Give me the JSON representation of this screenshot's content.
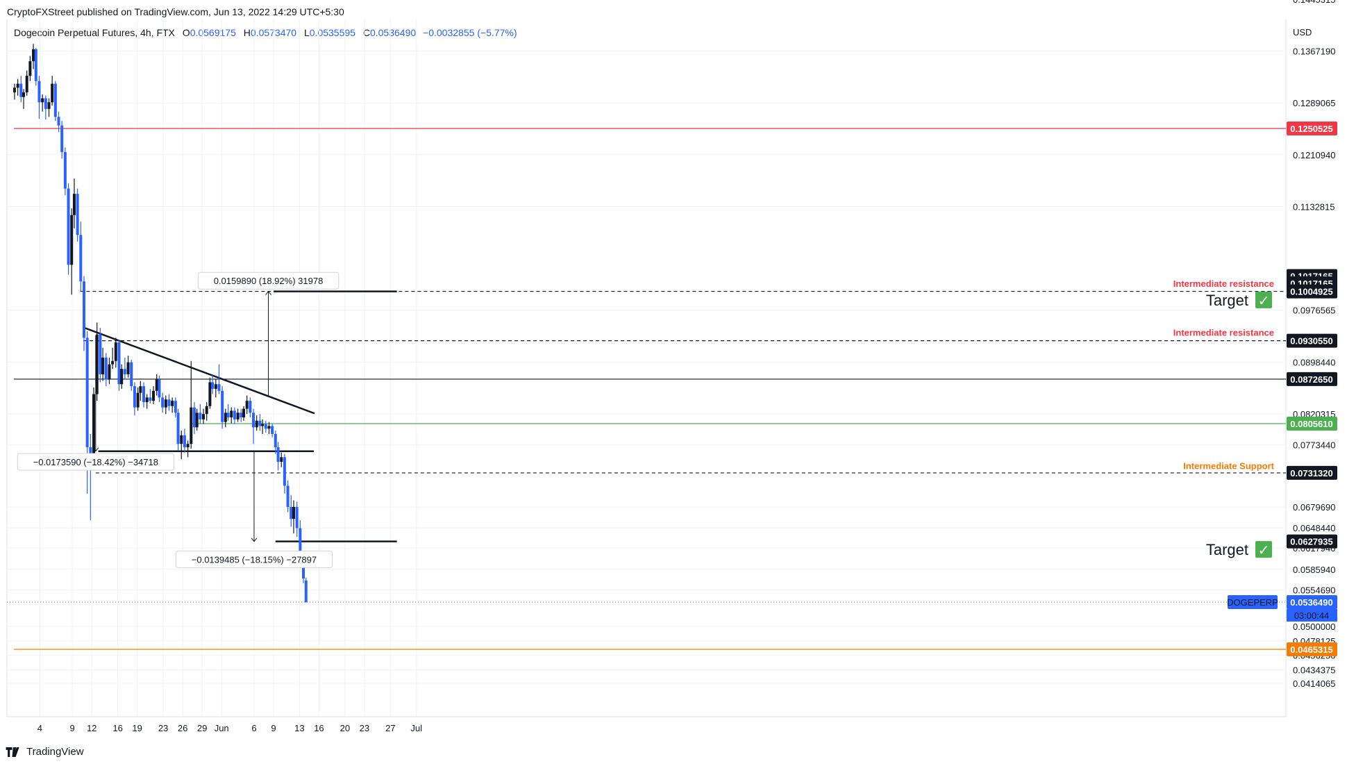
{
  "header": {
    "published": "CryptoFXStreet published on TradingView.com, Jun 13, 2022 14:29 UTC+5:30"
  },
  "legend": {
    "instrument": "Dogecoin Perpetual Futures, 4h, FTX",
    "open_label": "O",
    "open": "0.0569175",
    "high_label": "H",
    "high": "0.0573470",
    "low_label": "L",
    "low": "0.0535595",
    "close_label": "C",
    "close": "0.0536490",
    "change": "−0.0032855 (−5.77%)"
  },
  "footer": {
    "brand": "TradingView"
  },
  "chart_data": {
    "type": "candlestick",
    "currency": "USD",
    "colors": {
      "up": "#131722",
      "down": "#2962ff",
      "grid": "#f0f3fa",
      "resistance": "#f23645",
      "support_color": "#f57c00",
      "green_line": "#4caf50"
    },
    "y_ticks": [
      "0.1445315",
      "0.1367190",
      "0.1289065",
      "0.1210940",
      "0.1132815",
      "0.0976565",
      "0.0898440",
      "0.0820315",
      "0.0773440",
      "0.0679690",
      "0.0648440",
      "0.0617940",
      "0.0585940",
      "0.0554690",
      "0.0500000",
      "0.0478125",
      "0.0456250",
      "0.0434375",
      "0.0414065"
    ],
    "x_ticks": [
      {
        "label": "4",
        "day": 4
      },
      {
        "label": "9",
        "day": 9
      },
      {
        "label": "12",
        "day": 12
      },
      {
        "label": "16",
        "day": 16
      },
      {
        "label": "19",
        "day": 19
      },
      {
        "label": "23",
        "day": 23
      },
      {
        "label": "26",
        "day": 26
      },
      {
        "label": "29",
        "day": 29
      },
      {
        "label": "Jun",
        "day": 32
      },
      {
        "label": "6",
        "day": 37
      },
      {
        "label": "9",
        "day": 40
      },
      {
        "label": "13",
        "day": 44
      },
      {
        "label": "16",
        "day": 47
      },
      {
        "label": "20",
        "day": 51
      },
      {
        "label": "23",
        "day": 54
      },
      {
        "label": "27",
        "day": 58
      },
      {
        "label": "Jul",
        "day": 62
      }
    ],
    "price_tags": [
      {
        "value": "0.1250525",
        "price": 0.1250525,
        "bg": "#f23645",
        "fg": "#ffffff"
      },
      {
        "value": "0.1017165",
        "price": 0.1028,
        "bg": "#131722",
        "fg": "#ffffff"
      },
      {
        "value": "0.1017165",
        "price": 0.1017165,
        "bg": "#131722",
        "fg": "#ffffff"
      },
      {
        "value": "0.1004925",
        "price": 0.1004925,
        "bg": "#131722",
        "fg": "#ffffff"
      },
      {
        "value": "0.0930550",
        "price": 0.093055,
        "bg": "#131722",
        "fg": "#ffffff"
      },
      {
        "value": "0.0872650",
        "price": 0.087265,
        "bg": "#131722",
        "fg": "#ffffff"
      },
      {
        "value": "0.0805610",
        "price": 0.080561,
        "bg": "#4caf50",
        "fg": "#ffffff"
      },
      {
        "value": "0.0731320",
        "price": 0.073132,
        "bg": "#131722",
        "fg": "#ffffff"
      },
      {
        "value": "0.0627935",
        "price": 0.0627935,
        "bg": "#131722",
        "fg": "#ffffff"
      },
      {
        "value": "0.0536490",
        "price": 0.053649,
        "bg": "#2962ff",
        "fg": "#ffffff"
      },
      {
        "value": "0.0465315",
        "price": 0.0465315,
        "bg": "#f57c00",
        "fg": "#ffffff"
      }
    ],
    "countdown": "03:00:44",
    "symbol_tag": "DOGEPERP",
    "horizontal_levels": [
      {
        "price": 0.1250525,
        "color": "#f23645",
        "style": "solid",
        "from_day": 0
      },
      {
        "price": 0.1004925,
        "color": "#131722",
        "style": "dashed",
        "from_day": 10.2
      },
      {
        "price": 0.093055,
        "color": "#131722",
        "style": "dashed",
        "from_day": 10.7
      },
      {
        "price": 0.087265,
        "color": "#131722",
        "style": "solid",
        "from_day": 0
      },
      {
        "price": 0.080561,
        "color": "#4caf50",
        "style": "solid",
        "from_day": 27.4
      },
      {
        "price": 0.073132,
        "color": "#131722",
        "style": "dashed",
        "from_day": 12.6
      },
      {
        "price": 0.0465315,
        "color": "#f57c00",
        "style": "solid",
        "from_day": 0
      }
    ],
    "annotations": [
      {
        "text": "Intermediate resistance",
        "price": 0.1017165,
        "color": "#f23645"
      },
      {
        "text": "Intermediate resistance",
        "price": 0.0943,
        "color": "#f23645"
      },
      {
        "text": "Intermediate Support",
        "price": 0.0742,
        "color": "#f57c00"
      }
    ],
    "targets": [
      {
        "label": "Target",
        "check": "✓",
        "price": 0.0992
      },
      {
        "label": "Target",
        "check": "✓",
        "price": 0.0616
      }
    ],
    "trendlines": [
      {
        "from": [
          10.6,
          0.0951
        ],
        "to": [
          46.3,
          0.0821
        ]
      },
      {
        "from": [
          13.0,
          0.0764
        ],
        "to": [
          46.2,
          0.0764
        ]
      },
      {
        "from": [
          40.0,
          0.1004925
        ],
        "to": [
          59.0,
          0.1004925
        ]
      },
      {
        "from": [
          40.3,
          0.0627935
        ],
        "to": [
          59.0,
          0.0627935
        ]
      }
    ],
    "measurements": [
      {
        "text": "0.0159890 (18.92%) 31978",
        "from_price": 0.0847,
        "to_price": 0.1004925,
        "day": 39.2,
        "box_price": 0.1021
      },
      {
        "text": "−0.0173590 (−18.42%) −34718",
        "from_price": 0.0938,
        "to_price": 0.0764,
        "day": 12.6,
        "box_price": 0.0748
      },
      {
        "text": "−0.0139485 (−18.15%) −27897",
        "from_price": 0.0764,
        "to_price": 0.0627935,
        "day": 37.0,
        "box_price": 0.0601
      }
    ],
    "candles": [
      {
        "t": 0.1,
        "o": 0.1305,
        "h": 0.1318,
        "l": 0.1294,
        "c": 0.1312
      },
      {
        "t": 0.6,
        "o": 0.1312,
        "h": 0.1325,
        "l": 0.13,
        "c": 0.1318
      },
      {
        "t": 1.1,
        "o": 0.1318,
        "h": 0.133,
        "l": 0.129,
        "c": 0.1298
      },
      {
        "t": 1.5,
        "o": 0.1298,
        "h": 0.131,
        "l": 0.128,
        "c": 0.1305
      },
      {
        "t": 2.0,
        "o": 0.1305,
        "h": 0.1338,
        "l": 0.13,
        "c": 0.133
      },
      {
        "t": 2.5,
        "o": 0.133,
        "h": 0.136,
        "l": 0.1322,
        "c": 0.1352
      },
      {
        "t": 3.0,
        "o": 0.1352,
        "h": 0.1378,
        "l": 0.134,
        "c": 0.137
      },
      {
        "t": 3.4,
        "o": 0.137,
        "h": 0.1372,
        "l": 0.1315,
        "c": 0.1322
      },
      {
        "t": 3.9,
        "o": 0.1322,
        "h": 0.133,
        "l": 0.1265,
        "c": 0.129
      },
      {
        "t": 4.4,
        "o": 0.129,
        "h": 0.1302,
        "l": 0.1276,
        "c": 0.1296
      },
      {
        "t": 4.9,
        "o": 0.1296,
        "h": 0.13,
        "l": 0.1264,
        "c": 0.128
      },
      {
        "t": 5.4,
        "o": 0.128,
        "h": 0.1296,
        "l": 0.1268,
        "c": 0.129
      },
      {
        "t": 5.9,
        "o": 0.129,
        "h": 0.133,
        "l": 0.1285,
        "c": 0.1318
      },
      {
        "t": 6.4,
        "o": 0.1318,
        "h": 0.1322,
        "l": 0.1262,
        "c": 0.1268
      },
      {
        "t": 6.9,
        "o": 0.1268,
        "h": 0.1276,
        "l": 0.1245,
        "c": 0.1255
      },
      {
        "t": 7.4,
        "o": 0.1255,
        "h": 0.1262,
        "l": 0.1205,
        "c": 0.1215
      },
      {
        "t": 7.9,
        "o": 0.1215,
        "h": 0.1222,
        "l": 0.115,
        "c": 0.116
      },
      {
        "t": 8.4,
        "o": 0.116,
        "h": 0.1168,
        "l": 0.103,
        "c": 0.1045
      },
      {
        "t": 8.9,
        "o": 0.1045,
        "h": 0.113,
        "l": 0.1,
        "c": 0.112
      },
      {
        "t": 9.3,
        "o": 0.112,
        "h": 0.1175,
        "l": 0.11,
        "c": 0.1152
      },
      {
        "t": 9.8,
        "o": 0.1152,
        "h": 0.116,
        "l": 0.108,
        "c": 0.109
      },
      {
        "t": 10.3,
        "o": 0.109,
        "h": 0.111,
        "l": 0.1005,
        "c": 0.102
      },
      {
        "t": 10.8,
        "o": 0.102,
        "h": 0.1028,
        "l": 0.0915,
        "c": 0.0935
      },
      {
        "t": 11.3,
        "o": 0.0935,
        "h": 0.0945,
        "l": 0.07,
        "c": 0.077
      },
      {
        "t": 11.8,
        "o": 0.077,
        "h": 0.079,
        "l": 0.066,
        "c": 0.0745
      },
      {
        "t": 12.3,
        "o": 0.0745,
        "h": 0.086,
        "l": 0.0738,
        "c": 0.085
      },
      {
        "t": 12.8,
        "o": 0.085,
        "h": 0.0958,
        "l": 0.084,
        "c": 0.094
      },
      {
        "t": 13.3,
        "o": 0.094,
        "h": 0.095,
        "l": 0.0868,
        "c": 0.088
      },
      {
        "t": 13.7,
        "o": 0.088,
        "h": 0.092,
        "l": 0.087,
        "c": 0.0905
      },
      {
        "t": 14.2,
        "o": 0.0905,
        "h": 0.0912,
        "l": 0.0862,
        "c": 0.0872
      },
      {
        "t": 14.7,
        "o": 0.0872,
        "h": 0.0905,
        "l": 0.0865,
        "c": 0.0895
      },
      {
        "t": 15.2,
        "o": 0.0895,
        "h": 0.092,
        "l": 0.0888,
        "c": 0.09
      },
      {
        "t": 15.7,
        "o": 0.09,
        "h": 0.0935,
        "l": 0.089,
        "c": 0.0928
      },
      {
        "t": 16.2,
        "o": 0.0928,
        "h": 0.0932,
        "l": 0.0855,
        "c": 0.0865
      },
      {
        "t": 16.6,
        "o": 0.0865,
        "h": 0.0895,
        "l": 0.0858,
        "c": 0.0888
      },
      {
        "t": 17.1,
        "o": 0.0888,
        "h": 0.0905,
        "l": 0.0872,
        "c": 0.088
      },
      {
        "t": 17.6,
        "o": 0.088,
        "h": 0.0908,
        "l": 0.0875,
        "c": 0.0898
      },
      {
        "t": 18.1,
        "o": 0.0898,
        "h": 0.0902,
        "l": 0.0855,
        "c": 0.0862
      },
      {
        "t": 18.6,
        "o": 0.0862,
        "h": 0.0868,
        "l": 0.0818,
        "c": 0.083
      },
      {
        "t": 19.1,
        "o": 0.083,
        "h": 0.086,
        "l": 0.0825,
        "c": 0.0852
      },
      {
        "t": 19.5,
        "o": 0.0852,
        "h": 0.087,
        "l": 0.084,
        "c": 0.0862
      },
      {
        "t": 20.0,
        "o": 0.0862,
        "h": 0.0868,
        "l": 0.083,
        "c": 0.0838
      },
      {
        "t": 20.5,
        "o": 0.0838,
        "h": 0.085,
        "l": 0.0828,
        "c": 0.0845
      },
      {
        "t": 21.0,
        "o": 0.0845,
        "h": 0.0858,
        "l": 0.0836,
        "c": 0.084
      },
      {
        "t": 21.5,
        "o": 0.084,
        "h": 0.0862,
        "l": 0.0835,
        "c": 0.0855
      },
      {
        "t": 22.0,
        "o": 0.0855,
        "h": 0.088,
        "l": 0.0848,
        "c": 0.0872
      },
      {
        "t": 22.4,
        "o": 0.0872,
        "h": 0.0878,
        "l": 0.0838,
        "c": 0.0845
      },
      {
        "t": 22.9,
        "o": 0.0845,
        "h": 0.0852,
        "l": 0.0822,
        "c": 0.083
      },
      {
        "t": 23.4,
        "o": 0.083,
        "h": 0.0848,
        "l": 0.082,
        "c": 0.0842
      },
      {
        "t": 23.9,
        "o": 0.0842,
        "h": 0.085,
        "l": 0.0825,
        "c": 0.0832
      },
      {
        "t": 24.4,
        "o": 0.0832,
        "h": 0.0845,
        "l": 0.0822,
        "c": 0.084
      },
      {
        "t": 24.9,
        "o": 0.084,
        "h": 0.0845,
        "l": 0.0815,
        "c": 0.0822
      },
      {
        "t": 25.3,
        "o": 0.0822,
        "h": 0.0828,
        "l": 0.0765,
        "c": 0.0775
      },
      {
        "t": 25.8,
        "o": 0.0775,
        "h": 0.0795,
        "l": 0.0752,
        "c": 0.0788
      },
      {
        "t": 26.3,
        "o": 0.0788,
        "h": 0.0798,
        "l": 0.0762,
        "c": 0.077
      },
      {
        "t": 26.8,
        "o": 0.077,
        "h": 0.078,
        "l": 0.0755,
        "c": 0.0775
      },
      {
        "t": 27.3,
        "o": 0.0775,
        "h": 0.09,
        "l": 0.0768,
        "c": 0.083
      },
      {
        "t": 27.8,
        "o": 0.083,
        "h": 0.0838,
        "l": 0.079,
        "c": 0.08
      },
      {
        "t": 28.2,
        "o": 0.08,
        "h": 0.0828,
        "l": 0.0795,
        "c": 0.0822
      },
      {
        "t": 28.7,
        "o": 0.0822,
        "h": 0.0835,
        "l": 0.0805,
        "c": 0.0812
      },
      {
        "t": 29.2,
        "o": 0.0812,
        "h": 0.0828,
        "l": 0.0805,
        "c": 0.082
      },
      {
        "t": 29.7,
        "o": 0.082,
        "h": 0.0838,
        "l": 0.081,
        "c": 0.0832
      },
      {
        "t": 30.2,
        "o": 0.0832,
        "h": 0.0875,
        "l": 0.0828,
        "c": 0.0868
      },
      {
        "t": 30.6,
        "o": 0.0868,
        "h": 0.088,
        "l": 0.085,
        "c": 0.0858
      },
      {
        "t": 31.1,
        "o": 0.0858,
        "h": 0.0872,
        "l": 0.0845,
        "c": 0.0865
      },
      {
        "t": 31.6,
        "o": 0.0865,
        "h": 0.0895,
        "l": 0.085,
        "c": 0.0855
      },
      {
        "t": 32.1,
        "o": 0.0855,
        "h": 0.0862,
        "l": 0.0798,
        "c": 0.0808
      },
      {
        "t": 32.6,
        "o": 0.0808,
        "h": 0.0828,
        "l": 0.08,
        "c": 0.0822
      },
      {
        "t": 33.0,
        "o": 0.0822,
        "h": 0.0835,
        "l": 0.081,
        "c": 0.0815
      },
      {
        "t": 33.5,
        "o": 0.0815,
        "h": 0.083,
        "l": 0.0806,
        "c": 0.0825
      },
      {
        "t": 34.0,
        "o": 0.0825,
        "h": 0.083,
        "l": 0.0805,
        "c": 0.0812
      },
      {
        "t": 34.5,
        "o": 0.0812,
        "h": 0.0828,
        "l": 0.0808,
        "c": 0.0822
      },
      {
        "t": 35.0,
        "o": 0.0822,
        "h": 0.0828,
        "l": 0.0808,
        "c": 0.0815
      },
      {
        "t": 35.4,
        "o": 0.0815,
        "h": 0.0832,
        "l": 0.081,
        "c": 0.0828
      },
      {
        "t": 35.9,
        "o": 0.0828,
        "h": 0.0848,
        "l": 0.082,
        "c": 0.084
      },
      {
        "t": 36.4,
        "o": 0.084,
        "h": 0.0845,
        "l": 0.0815,
        "c": 0.0822
      },
      {
        "t": 36.9,
        "o": 0.0822,
        "h": 0.0828,
        "l": 0.0775,
        "c": 0.08
      },
      {
        "t": 37.4,
        "o": 0.08,
        "h": 0.0818,
        "l": 0.0795,
        "c": 0.081
      },
      {
        "t": 37.9,
        "o": 0.081,
        "h": 0.082,
        "l": 0.0795,
        "c": 0.0802
      },
      {
        "t": 38.3,
        "o": 0.0802,
        "h": 0.0812,
        "l": 0.079,
        "c": 0.0805
      },
      {
        "t": 38.8,
        "o": 0.0805,
        "h": 0.081,
        "l": 0.0792,
        "c": 0.0798
      },
      {
        "t": 39.3,
        "o": 0.0798,
        "h": 0.0808,
        "l": 0.079,
        "c": 0.0802
      },
      {
        "t": 39.8,
        "o": 0.0802,
        "h": 0.0805,
        "l": 0.0785,
        "c": 0.079
      },
      {
        "t": 40.3,
        "o": 0.079,
        "h": 0.0795,
        "l": 0.076,
        "c": 0.077
      },
      {
        "t": 40.7,
        "o": 0.077,
        "h": 0.0778,
        "l": 0.0735,
        "c": 0.0748
      },
      {
        "t": 41.2,
        "o": 0.0748,
        "h": 0.0762,
        "l": 0.074,
        "c": 0.0755
      },
      {
        "t": 41.7,
        "o": 0.0755,
        "h": 0.076,
        "l": 0.07,
        "c": 0.0712
      },
      {
        "t": 42.2,
        "o": 0.0712,
        "h": 0.072,
        "l": 0.0672,
        "c": 0.068
      },
      {
        "t": 42.7,
        "o": 0.068,
        "h": 0.0698,
        "l": 0.065,
        "c": 0.0662
      },
      {
        "t": 43.1,
        "o": 0.0662,
        "h": 0.069,
        "l": 0.064,
        "c": 0.068
      },
      {
        "t": 43.6,
        "o": 0.068,
        "h": 0.0688,
        "l": 0.0635,
        "c": 0.0648
      },
      {
        "t": 44.1,
        "o": 0.0648,
        "h": 0.066,
        "l": 0.0598,
        "c": 0.0608
      },
      {
        "t": 44.6,
        "o": 0.0608,
        "h": 0.0612,
        "l": 0.0565,
        "c": 0.0572
      },
      {
        "t": 45.0,
        "o": 0.0569175,
        "h": 0.057347,
        "l": 0.0535595,
        "c": 0.053649
      }
    ]
  }
}
